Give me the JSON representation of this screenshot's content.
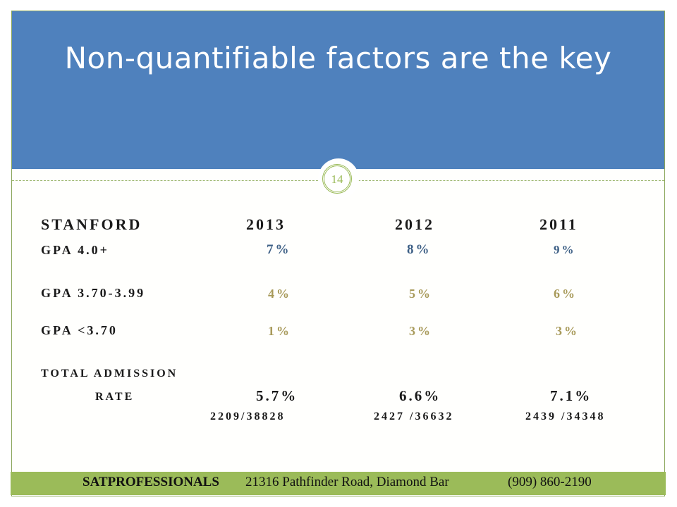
{
  "title": "Non-quantifiable factors are the key",
  "slide_number": "14",
  "table": {
    "header": [
      "STANFORD",
      "2013",
      "2012",
      "2011"
    ],
    "rows": [
      {
        "label": "GPA 4.0+",
        "values": [
          "7%",
          "8%",
          "9%"
        ]
      },
      {
        "label": "GPA 3.70-3.99",
        "values": [
          "4%",
          "5%",
          "6%"
        ]
      },
      {
        "label": "GPA <3.70",
        "values": [
          "1%",
          "3%",
          "3%"
        ]
      }
    ],
    "total": {
      "label_line1": "TOTAL ADMISSION",
      "label_line2": "RATE",
      "values": [
        "5.7%",
        "6.6%",
        "7.1%"
      ],
      "fractions": [
        "2209/38828",
        "2427 /36632",
        "2439 /34348"
      ]
    }
  },
  "footer": {
    "company": "SATPROFESSIONALS",
    "address": "21316 Pathfinder Road, Diamond Bar",
    "phone": "(909) 860-2190"
  },
  "colors": {
    "header": "#4f81bd",
    "accent": "#9bbb59"
  }
}
